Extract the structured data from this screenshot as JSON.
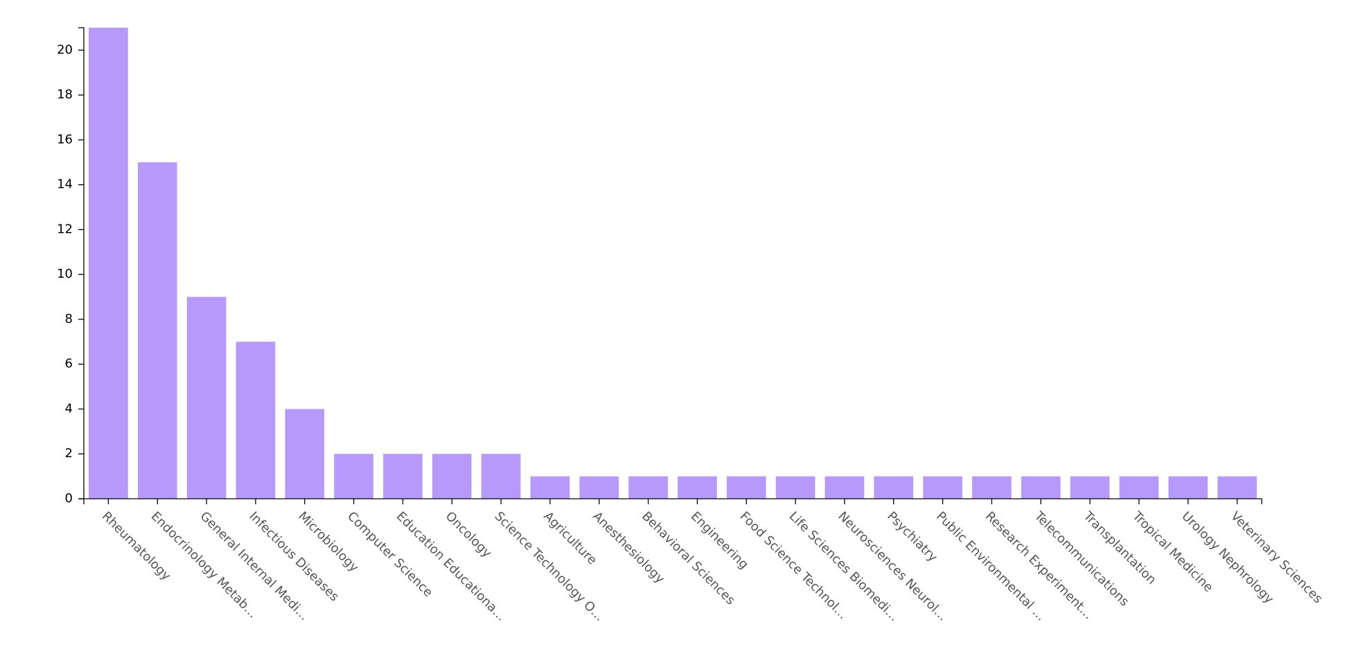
{
  "chart_data": {
    "type": "bar",
    "title": "",
    "xlabel": "",
    "ylabel": "",
    "ylim": [
      0,
      21
    ],
    "yticks": [
      0,
      2,
      4,
      6,
      8,
      10,
      12,
      14,
      16,
      18,
      20
    ],
    "grid": false,
    "legend": "none",
    "bar_color": "#b799fc",
    "categories": [
      "Rheumatology",
      "Endocrinology Metab…",
      "General Internal Medi…",
      "Infectious Diseases",
      "Microbiology",
      "Computer Science",
      "Education Educationa…",
      "Oncology",
      "Science Technology O…",
      "Agriculture",
      "Anesthesiology",
      "Behavioral Sciences",
      "Engineering",
      "Food Science Technol…",
      "Life Sciences Biomedi…",
      "Neurosciences Neurol…",
      "Psychiatry",
      "Public Environmental …",
      "Research Experiment…",
      "Telecommunications",
      "Transplantation",
      "Tropical Medicine",
      "Urology Nephrology",
      "Veterinary Sciences"
    ],
    "values": [
      21,
      15,
      9,
      7,
      4,
      2,
      2,
      2,
      2,
      1,
      1,
      1,
      1,
      1,
      1,
      1,
      1,
      1,
      1,
      1,
      1,
      1,
      1,
      1
    ]
  }
}
